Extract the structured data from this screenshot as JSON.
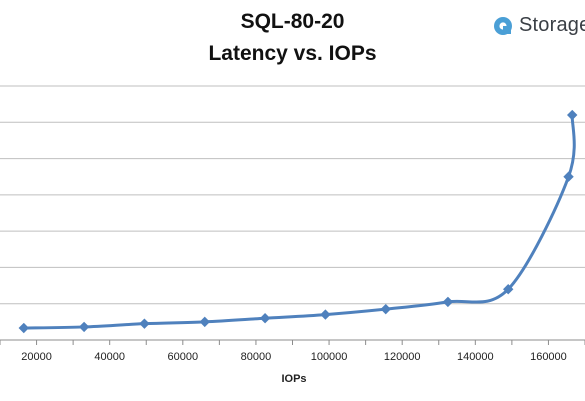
{
  "header": {
    "title_line1": "SQL-80-20",
    "title_line2": "Latency vs. IOPs"
  },
  "brand": {
    "text": "Storage",
    "logo_icon": "storagereview-logo-icon",
    "color": "#4a9fd6"
  },
  "colors": {
    "series": "#4f81bd",
    "grid": "#bfbfbf",
    "axis": "#8c8c8c"
  },
  "chart_data": {
    "type": "line",
    "title": "SQL-80-20 Latency vs. IOPs",
    "xlabel": "IOPs",
    "ylabel": "",
    "xlim": [
      10000,
      170000
    ],
    "ylim": [
      0,
      7
    ],
    "x_ticks": [
      20000,
      40000,
      60000,
      80000,
      100000,
      120000,
      140000,
      160000
    ],
    "x_tick_labels": [
      "20000",
      "40000",
      "60000",
      "80000",
      "100000",
      "120000",
      "140000",
      "160000"
    ],
    "y_ticks": [
      0,
      1,
      2,
      3,
      4,
      5,
      6,
      7
    ],
    "grid": "horizontal",
    "legend": "none",
    "series": [
      {
        "name": "",
        "x": [
          16500,
          33000,
          49500,
          66000,
          82500,
          99000,
          115500,
          132500,
          149000,
          165500,
          166500
        ],
        "y": [
          0.33,
          0.36,
          0.45,
          0.5,
          0.6,
          0.7,
          0.85,
          1.05,
          1.4,
          4.5,
          6.2
        ]
      }
    ]
  }
}
